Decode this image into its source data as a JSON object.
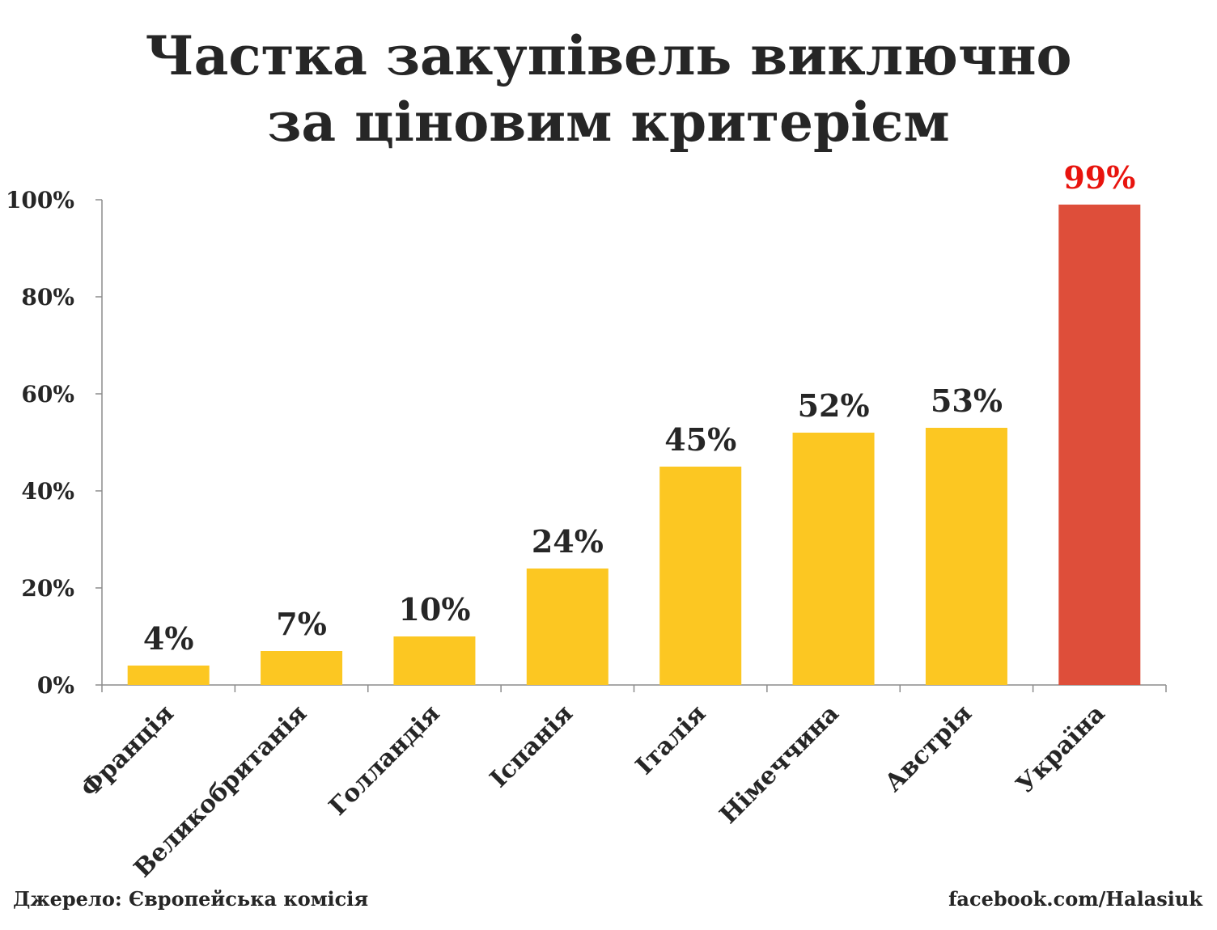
{
  "title_lines": [
    "Частка закупівель виключно",
    "за ціновим критерієм"
  ],
  "footer": {
    "source": "Джерело: Європейська комісія",
    "credit": "facebook.com/Halasiuk"
  },
  "colors": {
    "bar": "#FCC722",
    "highlight_bar": "#DE4E3A",
    "highlight_label": "#E8140E",
    "text": "#262626",
    "axis": "#8c8c8c"
  },
  "chart_data": {
    "type": "bar",
    "title": "Частка закупівель виключно за ціновим критерієм",
    "categories": [
      "Франція",
      "Великобританія",
      "Голландія",
      "Іспанія",
      "Італія",
      "Німеччина",
      "Австрія",
      "Україна"
    ],
    "values": [
      4,
      7,
      10,
      24,
      45,
      52,
      53,
      99
    ],
    "data_labels": [
      "4%",
      "7%",
      "10%",
      "24%",
      "45%",
      "52%",
      "53%",
      "99%"
    ],
    "highlight_category": "Україна",
    "ylim": [
      0,
      100
    ],
    "yticks": [
      0,
      20,
      40,
      60,
      80,
      100
    ],
    "ytick_labels": [
      "0%",
      "20%",
      "40%",
      "60%",
      "80%",
      "100%"
    ],
    "xlabel": "",
    "ylabel": "",
    "grid": false,
    "legend": false
  }
}
